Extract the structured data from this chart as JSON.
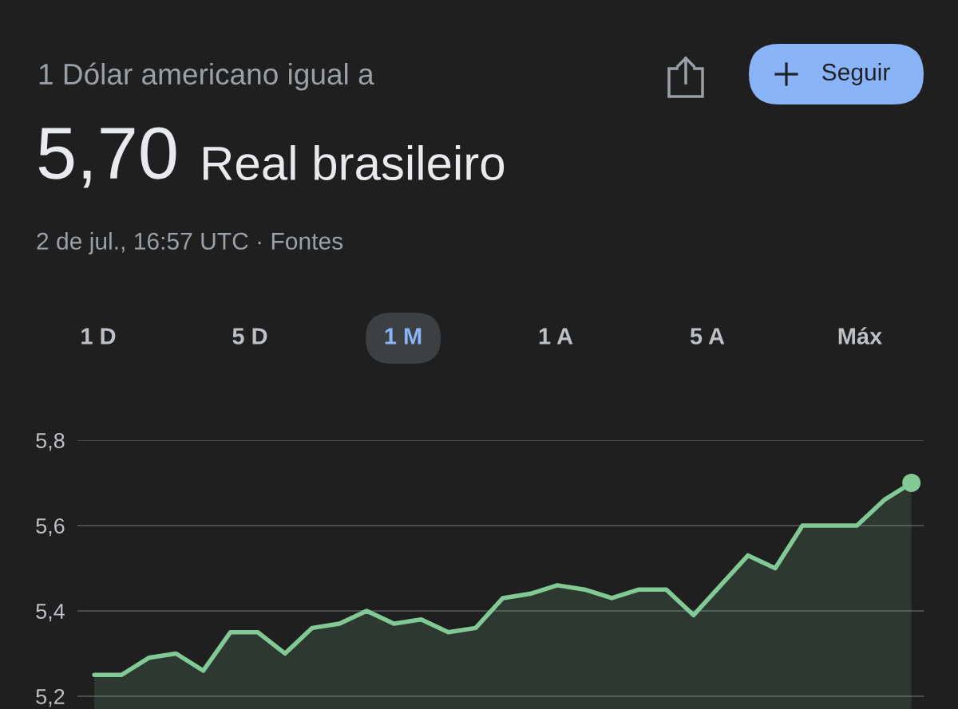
{
  "chart_data": {
    "type": "area",
    "title": "1 Dólar americano igual a",
    "subtitle": "5,70 Real brasileiro",
    "annotations": [
      "2 de jul., 16:57 UTC · Fontes",
      "Seguir",
      "1 D",
      "5 D",
      "1 M",
      "1 A",
      "5 A",
      "Máx"
    ],
    "categories": [
      null,
      null,
      null,
      null,
      null,
      null,
      null,
      null,
      null,
      null,
      null,
      null,
      null,
      null,
      null,
      null,
      null,
      null,
      null,
      null,
      null,
      null,
      null,
      null,
      null,
      null,
      null,
      null,
      null,
      null,
      null
    ],
    "series": [
      {
        "color": "#81c995",
        "values": [
          5.25,
          5.25,
          5.29,
          5.3,
          5.26,
          5.35,
          5.35,
          5.3,
          5.36,
          5.37,
          5.4,
          5.37,
          5.38,
          5.35,
          5.36,
          5.43,
          5.44,
          5.46,
          5.45,
          5.43,
          5.45,
          5.45,
          5.39,
          5.46,
          5.53,
          5.5,
          5.6,
          5.6,
          5.6,
          5.66,
          5.7
        ]
      },
      {
        "type": "scatter",
        "color": "#81c995",
        "marker": "circle",
        "values": [
          null,
          null,
          null,
          null,
          null,
          null,
          null,
          null,
          null,
          null,
          null,
          null,
          null,
          null,
          null,
          null,
          null,
          null,
          null,
          null,
          null,
          null,
          null,
          null,
          null,
          null,
          null,
          null,
          null,
          null,
          5.7
        ]
      }
    ],
    "ylim": [
      5.17,
      5.8
    ],
    "yticks": [
      {
        "value": 5.2,
        "label": "5,2"
      },
      {
        "value": 5.4,
        "label": "5,4"
      },
      {
        "value": 5.6,
        "label": "5,6"
      },
      {
        "value": 5.8,
        "label": "5,8"
      }
    ],
    "grid": "y"
  }
}
